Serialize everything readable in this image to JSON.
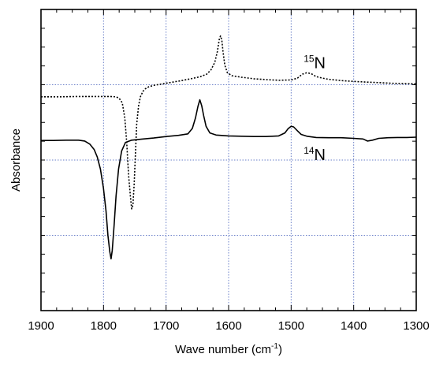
{
  "chart_data": {
    "type": "line",
    "xlabel": "Wave number (cm",
    "xlabel_sup": "-1",
    "xlabel_close": ")",
    "ylabel": "Absorbance",
    "xlim": [
      1900,
      1300
    ],
    "x_reversed": true,
    "ylim": [
      0,
      1
    ],
    "x_ticks": [
      1900,
      1800,
      1700,
      1600,
      1500,
      1400,
      1300
    ],
    "grid": true,
    "grid_color": "#6a7fc8",
    "series_labels": [
      {
        "mass": "15",
        "element": "N"
      },
      {
        "mass": "14",
        "element": "N"
      }
    ],
    "series": [
      {
        "style": "dotted",
        "color": "#000000",
        "points": [
          [
            1900,
            0.71
          ],
          [
            1870,
            0.71
          ],
          [
            1840,
            0.711
          ],
          [
            1810,
            0.711
          ],
          [
            1790,
            0.711
          ],
          [
            1780,
            0.71
          ],
          [
            1775,
            0.705
          ],
          [
            1770,
            0.69
          ],
          [
            1766,
            0.64
          ],
          [
            1763,
            0.56
          ],
          [
            1760,
            0.45
          ],
          [
            1757,
            0.38
          ],
          [
            1755,
            0.338
          ],
          [
            1753,
            0.35
          ],
          [
            1751,
            0.42
          ],
          [
            1749,
            0.52
          ],
          [
            1747,
            0.62
          ],
          [
            1744,
            0.68
          ],
          [
            1741,
            0.71
          ],
          [
            1737,
            0.728
          ],
          [
            1733,
            0.737
          ],
          [
            1728,
            0.743
          ],
          [
            1720,
            0.748
          ],
          [
            1700,
            0.755
          ],
          [
            1680,
            0.762
          ],
          [
            1660,
            0.77
          ],
          [
            1645,
            0.777
          ],
          [
            1635,
            0.785
          ],
          [
            1628,
            0.8
          ],
          [
            1622,
            0.825
          ],
          [
            1618,
            0.86
          ],
          [
            1615,
            0.9
          ],
          [
            1613,
            0.912
          ],
          [
            1611,
            0.9
          ],
          [
            1609,
            0.86
          ],
          [
            1606,
            0.815
          ],
          [
            1602,
            0.79
          ],
          [
            1595,
            0.78
          ],
          [
            1580,
            0.775
          ],
          [
            1560,
            0.77
          ],
          [
            1540,
            0.767
          ],
          [
            1520,
            0.765
          ],
          [
            1500,
            0.766
          ],
          [
            1490,
            0.772
          ],
          [
            1482,
            0.785
          ],
          [
            1475,
            0.79
          ],
          [
            1468,
            0.787
          ],
          [
            1460,
            0.777
          ],
          [
            1450,
            0.772
          ],
          [
            1440,
            0.768
          ],
          [
            1430,
            0.766
          ],
          [
            1420,
            0.764
          ],
          [
            1400,
            0.761
          ],
          [
            1380,
            0.759
          ],
          [
            1360,
            0.757
          ],
          [
            1340,
            0.755
          ],
          [
            1320,
            0.754
          ],
          [
            1300,
            0.753
          ]
        ]
      },
      {
        "style": "solid",
        "color": "#000000",
        "points": [
          [
            1900,
            0.565
          ],
          [
            1880,
            0.565
          ],
          [
            1860,
            0.566
          ],
          [
            1840,
            0.566
          ],
          [
            1830,
            0.563
          ],
          [
            1822,
            0.553
          ],
          [
            1815,
            0.535
          ],
          [
            1810,
            0.51
          ],
          [
            1805,
            0.47
          ],
          [
            1800,
            0.405
          ],
          [
            1796,
            0.33
          ],
          [
            1793,
            0.25
          ],
          [
            1790,
            0.195
          ],
          [
            1788,
            0.172
          ],
          [
            1786,
            0.2
          ],
          [
            1783,
            0.285
          ],
          [
            1780,
            0.38
          ],
          [
            1776,
            0.47
          ],
          [
            1771,
            0.53
          ],
          [
            1765,
            0.558
          ],
          [
            1755,
            0.566
          ],
          [
            1740,
            0.569
          ],
          [
            1720,
            0.573
          ],
          [
            1700,
            0.578
          ],
          [
            1680,
            0.582
          ],
          [
            1665,
            0.587
          ],
          [
            1658,
            0.605
          ],
          [
            1653,
            0.64
          ],
          [
            1649,
            0.678
          ],
          [
            1646,
            0.7
          ],
          [
            1643,
            0.68
          ],
          [
            1640,
            0.648
          ],
          [
            1636,
            0.612
          ],
          [
            1630,
            0.59
          ],
          [
            1620,
            0.583
          ],
          [
            1600,
            0.58
          ],
          [
            1580,
            0.579
          ],
          [
            1560,
            0.578
          ],
          [
            1540,
            0.578
          ],
          [
            1520,
            0.58
          ],
          [
            1510,
            0.59
          ],
          [
            1505,
            0.604
          ],
          [
            1500,
            0.612
          ],
          [
            1496,
            0.61
          ],
          [
            1490,
            0.597
          ],
          [
            1484,
            0.585
          ],
          [
            1475,
            0.579
          ],
          [
            1460,
            0.575
          ],
          [
            1440,
            0.574
          ],
          [
            1420,
            0.574
          ],
          [
            1400,
            0.572
          ],
          [
            1385,
            0.57
          ],
          [
            1378,
            0.563
          ],
          [
            1370,
            0.566
          ],
          [
            1360,
            0.572
          ],
          [
            1345,
            0.574
          ],
          [
            1330,
            0.575
          ],
          [
            1315,
            0.575
          ],
          [
            1300,
            0.576
          ]
        ]
      }
    ]
  }
}
